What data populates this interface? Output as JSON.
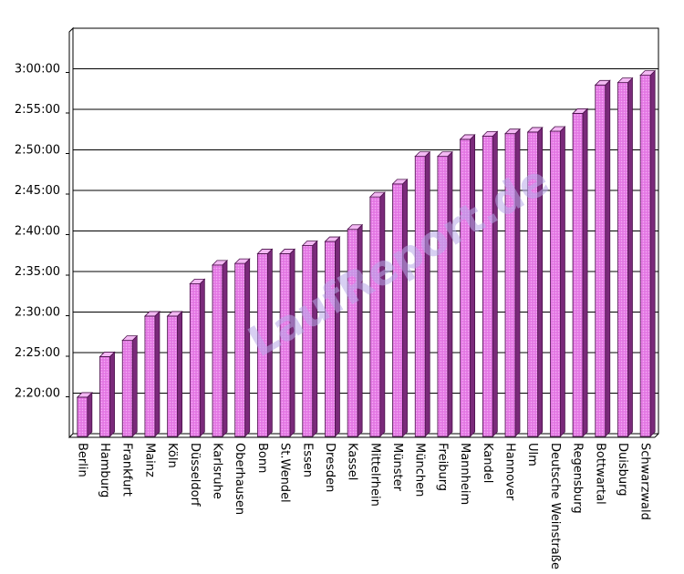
{
  "chart_data": {
    "type": "bar",
    "title": "",
    "xlabel": "",
    "ylabel": "",
    "watermark": "LaufReport.de",
    "y_unit": "minutes",
    "ylim": [
      135,
      185
    ],
    "yticks": [
      140,
      145,
      150,
      155,
      160,
      165,
      170,
      175,
      180
    ],
    "ytick_labels": [
      "2:20:00",
      "2:25:00",
      "2:30:00",
      "2:35:00",
      "2:40:00",
      "2:45:00",
      "2:50:00",
      "2:55:00",
      "3:00:00"
    ],
    "grid": true,
    "categories": [
      "Berlin",
      "Hamburg",
      "Frankfurt",
      "Mainz",
      "Köln",
      "Düsseldorf",
      "Karlsruhe",
      "Oberhausen",
      "Bonn",
      "St.Wendel",
      "Essen",
      "Dresden",
      "Kassel",
      "Mittelrhein",
      "Münster",
      "München",
      "Freiburg",
      "Mannheim",
      "Kandel",
      "Hannover",
      "Ulm",
      "Deutsche Weinstraße",
      "Regensburg",
      "Bottwartal",
      "Duisburg",
      "Schwarzwald"
    ],
    "values": [
      139.5,
      144.5,
      146.5,
      149.5,
      149.5,
      153.5,
      155.8,
      156.0,
      157.2,
      157.2,
      158.2,
      158.7,
      160.2,
      164.2,
      165.8,
      169.2,
      169.2,
      171.3,
      171.7,
      172.0,
      172.2,
      172.3,
      174.5,
      178.0,
      178.3,
      179.2
    ],
    "colors": {
      "bar_front": "#e87fe8",
      "bar_side": "#7a2a7a",
      "bar_top": "#f3b8f3",
      "bar_outline": "#4a104a"
    }
  }
}
